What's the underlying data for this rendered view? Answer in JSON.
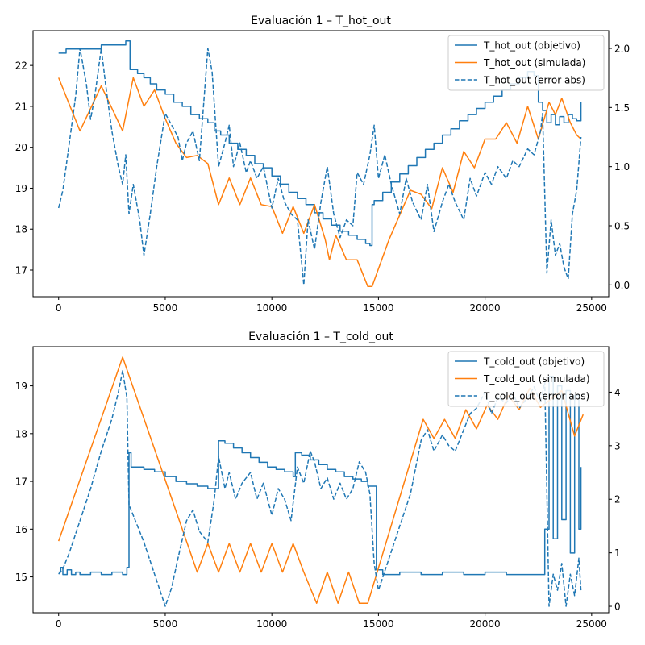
{
  "chart_data": [
    {
      "type": "line",
      "title": "Evaluación 1 – T_hot_out",
      "xlim": [
        -1200,
        25800
      ],
      "ylim": [
        16.35,
        22.85
      ],
      "y2lim": [
        -0.1,
        2.15
      ],
      "xticks": [
        0,
        5000,
        10000,
        15000,
        20000,
        25000
      ],
      "yticks": [
        17,
        18,
        19,
        20,
        21,
        22
      ],
      "y2ticks": [
        0.0,
        0.5,
        1.0,
        1.5,
        2.0
      ],
      "y2tick_labels": [
        "0.0",
        "0.5",
        "1.0",
        "1.5",
        "2.0"
      ],
      "legend_position": "top-right",
      "series": [
        {
          "name": "T_hot_out (objetivo)",
          "color": "#1f77b4",
          "style": "solid",
          "axis": "left",
          "shape": "step",
          "x": [
            0,
            200,
            350,
            500,
            1200,
            2000,
            2500,
            3000,
            3150,
            3250,
            3350,
            3700,
            4000,
            4300,
            4600,
            5000,
            5400,
            5800,
            6200,
            6600,
            7000,
            7300,
            7600,
            8000,
            8400,
            8800,
            9200,
            9600,
            10000,
            10400,
            10800,
            11200,
            11600,
            12000,
            12400,
            12800,
            13200,
            13600,
            14000,
            14400,
            14600,
            14700,
            14800,
            15200,
            15600,
            16000,
            16400,
            16800,
            17200,
            17600,
            18000,
            18400,
            18800,
            19200,
            19600,
            20000,
            20400,
            20800,
            21200,
            21600,
            22000,
            22300,
            22500,
            22700,
            22900,
            23100,
            23300,
            23500,
            23700,
            23900,
            24100,
            24300,
            24500
          ],
          "y": [
            22.3,
            22.3,
            22.4,
            22.4,
            22.4,
            22.5,
            22.5,
            22.5,
            22.6,
            22.6,
            21.9,
            21.8,
            21.7,
            21.55,
            21.4,
            21.3,
            21.1,
            21.0,
            20.8,
            20.7,
            20.6,
            20.4,
            20.3,
            20.1,
            19.95,
            19.8,
            19.6,
            19.5,
            19.3,
            19.1,
            18.9,
            18.75,
            18.6,
            18.4,
            18.25,
            18.1,
            17.95,
            17.85,
            17.75,
            17.65,
            17.6,
            18.6,
            18.7,
            18.9,
            19.15,
            19.35,
            19.55,
            19.75,
            19.95,
            20.1,
            20.3,
            20.45,
            20.65,
            20.8,
            20.95,
            21.1,
            21.25,
            21.4,
            21.55,
            21.7,
            21.85,
            21.75,
            21.1,
            20.9,
            20.6,
            20.8,
            20.55,
            20.75,
            20.6,
            20.8,
            20.7,
            20.65,
            21.1
          ]
        },
        {
          "name": "T_hot_out (simulada)",
          "color": "#ff7f0e",
          "style": "solid",
          "axis": "left",
          "x": [
            0,
            1000,
            2000,
            3000,
            3500,
            4000,
            4500,
            5000,
            5500,
            6000,
            6500,
            7000,
            7500,
            8000,
            8500,
            9000,
            9500,
            10000,
            10500,
            11000,
            11500,
            12000,
            12500,
            12700,
            13000,
            13500,
            14000,
            14500,
            14700,
            15500,
            16500,
            17000,
            17500,
            18000,
            18500,
            19000,
            19500,
            20000,
            20500,
            21000,
            21500,
            22000,
            22500,
            23000,
            23300,
            23600,
            24000,
            24300,
            24500
          ],
          "y": [
            21.7,
            20.4,
            21.5,
            20.4,
            21.7,
            21.0,
            21.4,
            20.7,
            20.1,
            19.75,
            19.8,
            19.6,
            18.6,
            19.25,
            18.6,
            19.25,
            18.6,
            18.55,
            17.9,
            18.55,
            17.9,
            18.6,
            17.75,
            17.25,
            17.85,
            17.25,
            17.25,
            16.6,
            16.6,
            17.75,
            18.95,
            18.85,
            18.5,
            19.5,
            18.9,
            19.9,
            19.5,
            20.2,
            20.2,
            20.6,
            20.1,
            21.0,
            20.2,
            21.1,
            20.8,
            21.2,
            20.6,
            20.3,
            20.2
          ]
        },
        {
          "name": "T_hot_out (error abs)",
          "color": "#1f77b4",
          "style": "dashed",
          "axis": "right",
          "x": [
            0,
            200,
            500,
            800,
            1000,
            1300,
            1500,
            1700,
            2000,
            2200,
            2500,
            2800,
            3000,
            3150,
            3300,
            3500,
            3800,
            4000,
            4300,
            4600,
            5000,
            5300,
            5600,
            5800,
            6000,
            6300,
            6600,
            7000,
            7200,
            7500,
            7800,
            8000,
            8200,
            8500,
            8800,
            9000,
            9300,
            9600,
            10000,
            10300,
            10600,
            10900,
            11200,
            11500,
            11700,
            12000,
            12300,
            12600,
            12900,
            13200,
            13500,
            13800,
            14000,
            14300,
            14600,
            14800,
            15000,
            15300,
            15600,
            16000,
            16300,
            16600,
            17000,
            17300,
            17600,
            18000,
            18300,
            18600,
            19000,
            19300,
            19600,
            20000,
            20300,
            20600,
            21000,
            21300,
            21600,
            22000,
            22300,
            22600,
            22700,
            22900,
            23100,
            23300,
            23500,
            23700,
            23900,
            24100,
            24300,
            24500
          ],
          "y": [
            0.65,
            0.8,
            1.2,
            1.6,
            2.0,
            1.7,
            1.4,
            1.6,
            2.0,
            1.7,
            1.3,
            1.0,
            0.85,
            1.1,
            0.6,
            0.85,
            0.55,
            0.25,
            0.6,
            1.0,
            1.45,
            1.35,
            1.25,
            1.05,
            1.2,
            1.3,
            1.05,
            2.0,
            1.8,
            1.0,
            1.2,
            1.35,
            1.0,
            1.2,
            0.95,
            1.05,
            0.9,
            1.0,
            0.65,
            0.9,
            0.7,
            0.6,
            0.55,
            0.0,
            0.55,
            0.3,
            0.7,
            1.0,
            0.6,
            0.4,
            0.55,
            0.5,
            0.95,
            0.85,
            1.1,
            1.35,
            0.9,
            1.1,
            0.85,
            0.6,
            0.9,
            0.7,
            0.55,
            0.85,
            0.45,
            0.7,
            0.85,
            0.7,
            0.55,
            0.9,
            0.75,
            0.95,
            0.85,
            1.0,
            0.9,
            1.05,
            1.0,
            1.15,
            1.1,
            1.3,
            1.45,
            0.1,
            0.55,
            0.25,
            0.35,
            0.15,
            0.05,
            0.6,
            0.8,
            1.25
          ]
        }
      ]
    },
    {
      "type": "line",
      "title": "Evaluación 1 – T_cold_out",
      "xlim": [
        -1200,
        25800
      ],
      "ylim": [
        14.25,
        19.82
      ],
      "y2lim": [
        -0.12,
        4.85
      ],
      "xticks": [
        0,
        5000,
        10000,
        15000,
        20000,
        25000
      ],
      "yticks": [
        15,
        16,
        17,
        18,
        19
      ],
      "y2ticks": [
        0,
        1,
        2,
        3,
        4
      ],
      "y2tick_labels": [
        "0",
        "1",
        "2",
        "3",
        "4"
      ],
      "legend_position": "top-right",
      "series": [
        {
          "name": "T_cold_out (objetivo)",
          "color": "#1f77b4",
          "style": "solid",
          "axis": "left",
          "shape": "step",
          "x": [
            0,
            100,
            200,
            400,
            600,
            800,
            1000,
            1500,
            2000,
            2500,
            3000,
            3200,
            3300,
            3400,
            3700,
            4000,
            4500,
            5000,
            5500,
            6000,
            6500,
            7000,
            7400,
            7500,
            7800,
            8200,
            8600,
            9000,
            9400,
            9800,
            10200,
            10600,
            11000,
            11100,
            11400,
            11800,
            12200,
            12600,
            13000,
            13400,
            13800,
            14200,
            14500,
            14800,
            14900,
            15200,
            16000,
            17000,
            18000,
            19000,
            20000,
            21000,
            22000,
            22700,
            22800,
            23000,
            23200,
            23400,
            23600,
            23800,
            24000,
            24200,
            24400,
            24500
          ],
          "y": [
            15.1,
            15.2,
            15.05,
            15.15,
            15.05,
            15.1,
            15.05,
            15.1,
            15.05,
            15.1,
            15.05,
            15.2,
            17.6,
            17.3,
            17.3,
            17.25,
            17.2,
            17.1,
            17.0,
            16.95,
            16.9,
            16.85,
            16.85,
            17.85,
            17.8,
            17.7,
            17.6,
            17.5,
            17.4,
            17.3,
            17.25,
            17.2,
            17.1,
            17.6,
            17.55,
            17.45,
            17.35,
            17.25,
            17.2,
            17.1,
            17.05,
            17.0,
            16.9,
            16.9,
            15.15,
            15.05,
            15.1,
            15.05,
            15.1,
            15.05,
            15.1,
            15.05,
            15.05,
            15.05,
            16.0,
            19.2,
            15.8,
            19.0,
            16.2,
            18.9,
            15.5,
            18.8,
            16.0,
            17.3
          ]
        },
        {
          "name": "T_cold_out (simulada)",
          "color": "#ff7f0e",
          "style": "solid",
          "axis": "left",
          "x": [
            0,
            3000,
            6500,
            7000,
            7500,
            8000,
            8500,
            9000,
            9500,
            10000,
            10500,
            11000,
            11500,
            12100,
            12600,
            13100,
            13600,
            14100,
            14500,
            17100,
            17600,
            18100,
            18600,
            19100,
            19600,
            20100,
            20600,
            21100,
            21600,
            22100,
            22600,
            23600,
            24200,
            24600
          ],
          "y": [
            15.75,
            19.6,
            15.1,
            15.7,
            15.1,
            15.7,
            15.1,
            15.7,
            15.1,
            15.7,
            15.1,
            15.7,
            15.1,
            14.45,
            15.1,
            14.45,
            15.1,
            14.45,
            14.45,
            18.3,
            17.9,
            18.3,
            17.9,
            18.5,
            18.1,
            18.6,
            18.3,
            18.8,
            18.5,
            18.95,
            18.55,
            18.9,
            17.95,
            18.4
          ]
        },
        {
          "name": "T_cold_out (error abs)",
          "color": "#1f77b4",
          "style": "dashed",
          "axis": "right",
          "x": [
            0,
            200,
            500,
            1000,
            1500,
            2000,
            2500,
            2800,
            3000,
            3200,
            3300,
            3500,
            4000,
            4500,
            5000,
            5300,
            5600,
            6000,
            6300,
            6600,
            7000,
            7300,
            7500,
            7800,
            8000,
            8300,
            8600,
            9000,
            9300,
            9600,
            10000,
            10300,
            10600,
            10900,
            11200,
            11500,
            11800,
            12000,
            12300,
            12600,
            12900,
            13200,
            13500,
            13800,
            14100,
            14400,
            14600,
            14800,
            15000,
            15500,
            16000,
            16500,
            17000,
            17300,
            17600,
            18000,
            18300,
            18600,
            19000,
            19300,
            19600,
            20000,
            20300,
            20600,
            21000,
            21300,
            21600,
            22000,
            22300,
            22600,
            22800,
            23000,
            23200,
            23400,
            23600,
            23800,
            24000,
            24200,
            24400,
            24500
          ],
          "y": [
            0.6,
            0.7,
            1.0,
            1.6,
            2.2,
            2.9,
            3.5,
            4.0,
            4.4,
            3.9,
            1.9,
            1.7,
            1.2,
            0.6,
            0.0,
            0.35,
            0.9,
            1.6,
            1.8,
            1.4,
            1.2,
            2.0,
            2.8,
            2.2,
            2.5,
            2.0,
            2.3,
            2.5,
            2.0,
            2.3,
            1.7,
            2.2,
            2.0,
            1.6,
            2.6,
            2.3,
            2.9,
            2.7,
            2.2,
            2.4,
            2.0,
            2.3,
            2.0,
            2.2,
            2.7,
            2.5,
            2.1,
            0.8,
            0.3,
            0.9,
            1.5,
            2.1,
            3.1,
            3.3,
            2.9,
            3.2,
            3.0,
            2.9,
            3.3,
            3.6,
            3.7,
            4.0,
            3.6,
            3.9,
            3.8,
            4.0,
            3.7,
            3.9,
            4.1,
            3.8,
            4.2,
            0.0,
            0.6,
            0.3,
            0.8,
            0.0,
            0.6,
            0.2,
            0.9,
            0.3
          ]
        }
      ]
    }
  ]
}
